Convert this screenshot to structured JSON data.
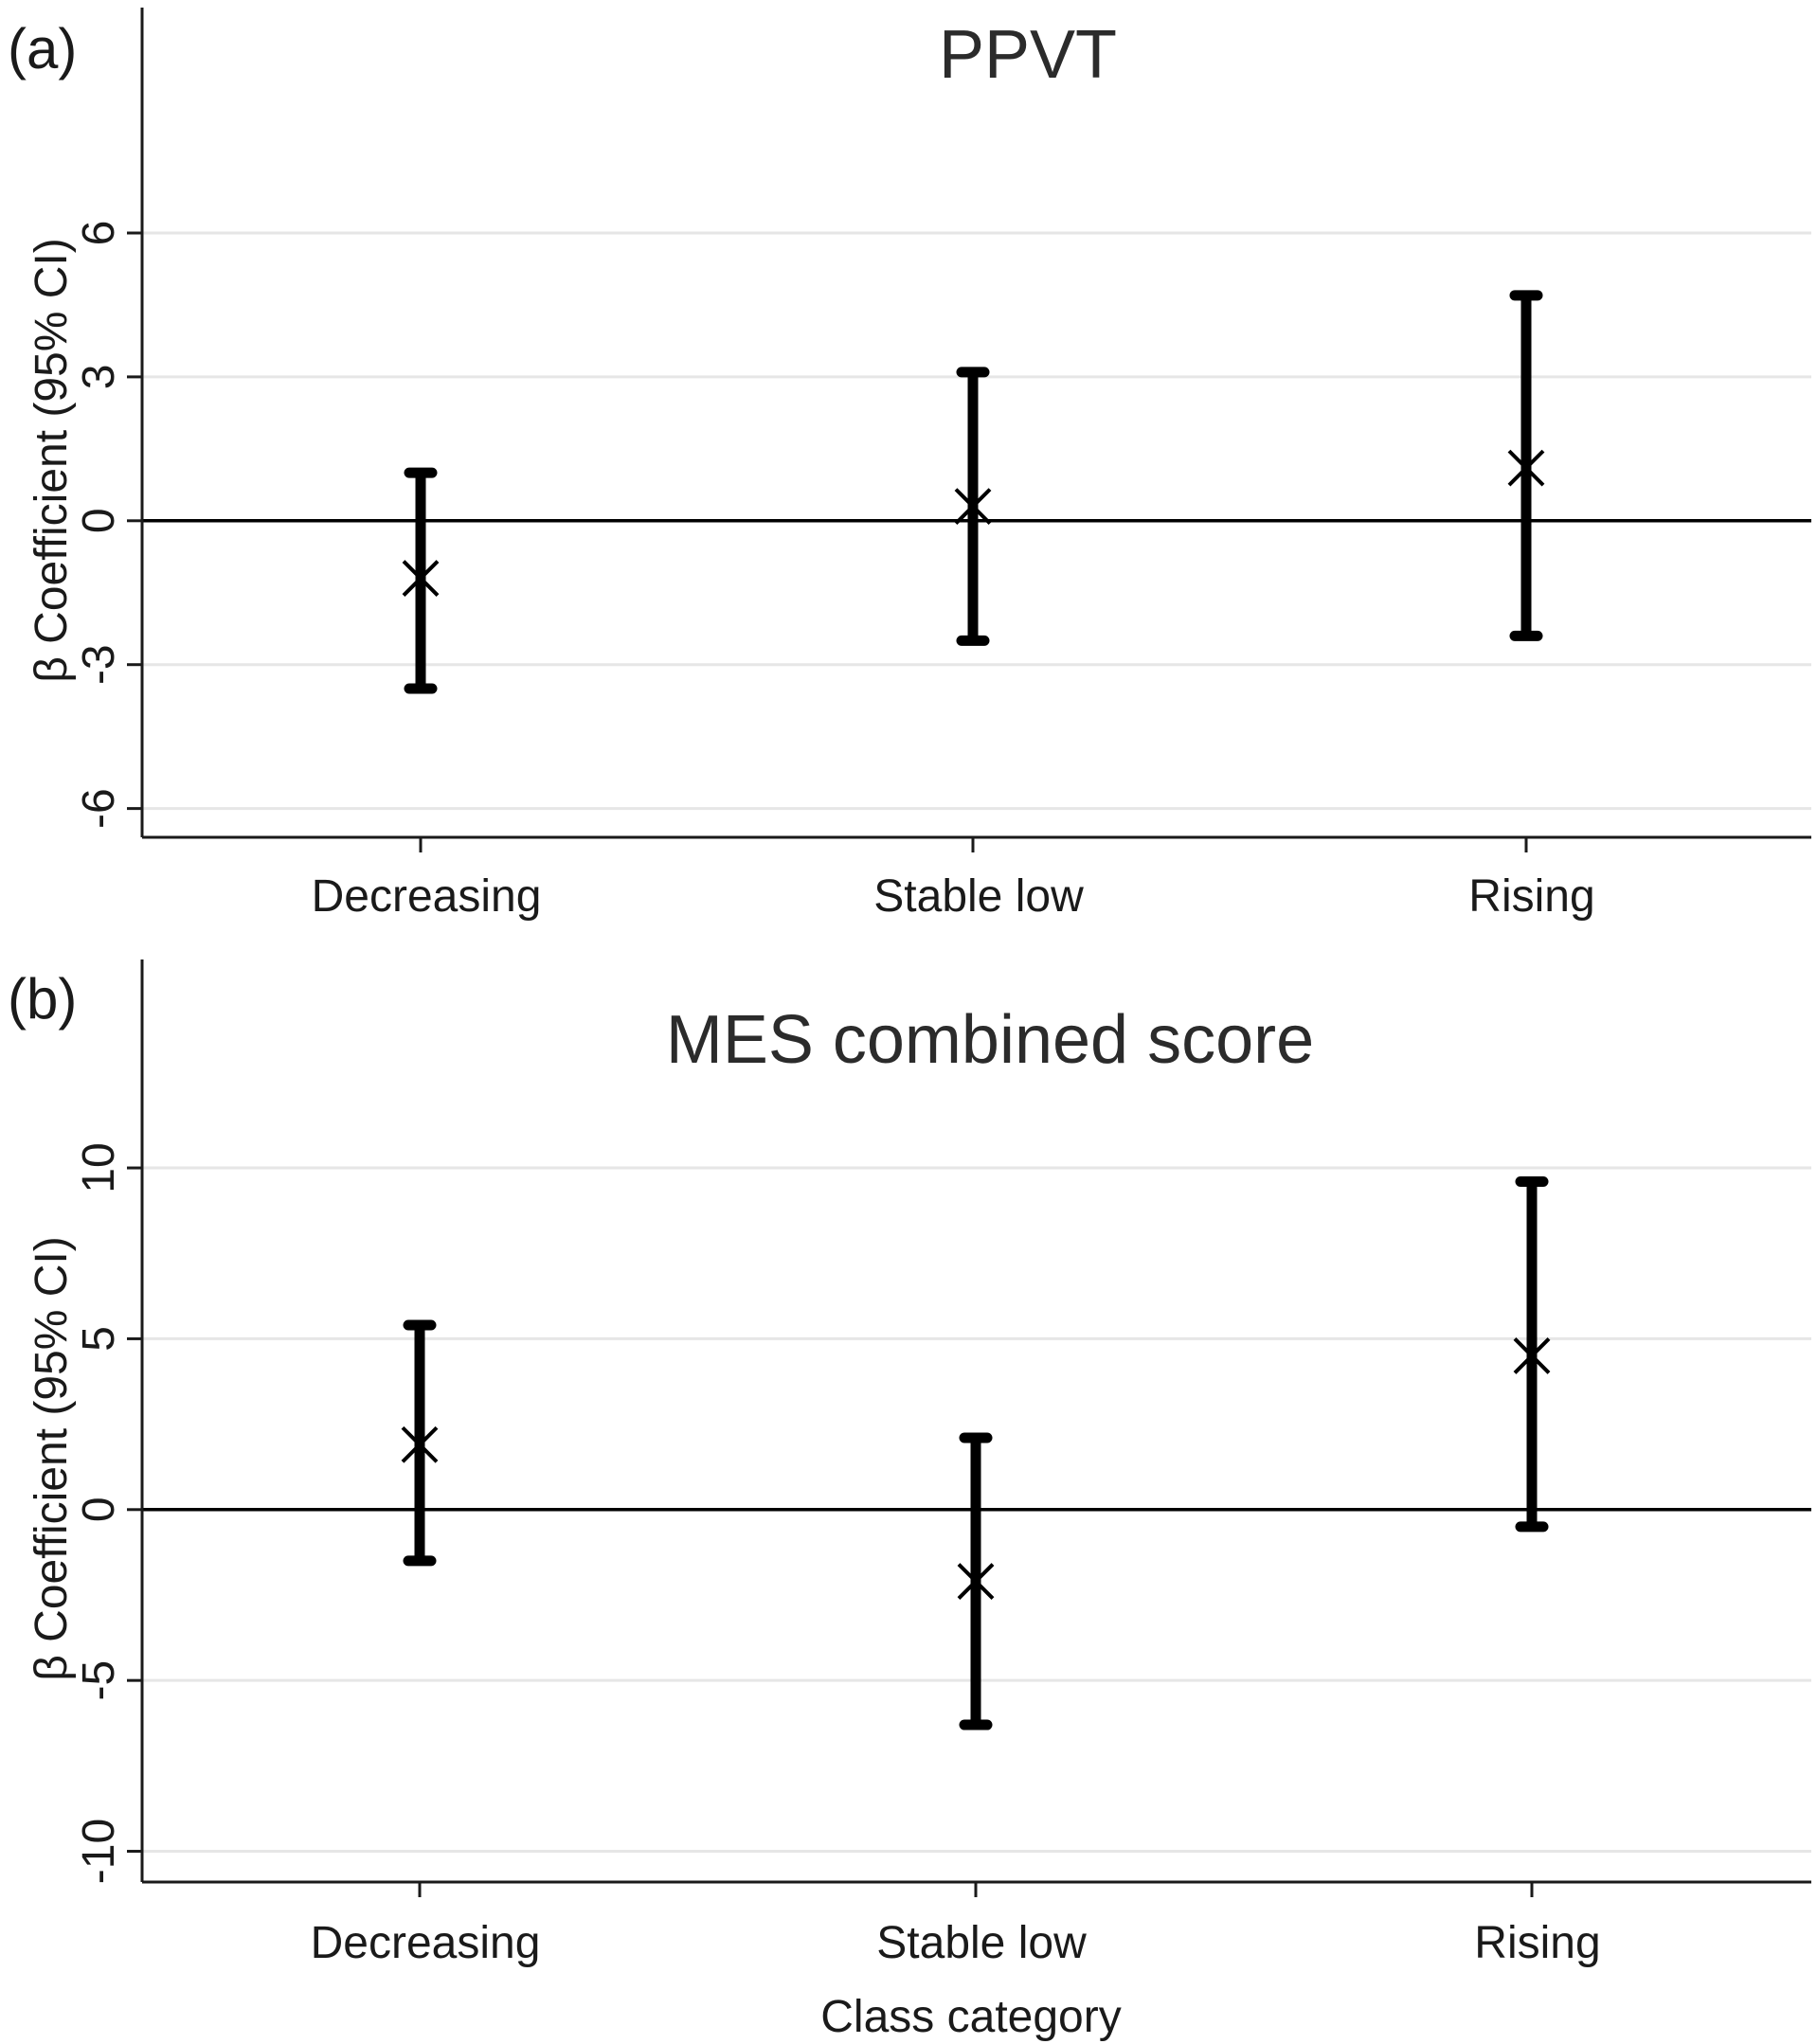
{
  "chart_data": [
    {
      "type": "errorbar",
      "panel_label": "(a)",
      "title": "PPVT",
      "ylabel": "β Coefficient  (95% CI)",
      "xlabel": "",
      "categories": [
        "Decreasing",
        "Stable low",
        "Rising"
      ],
      "estimates": [
        -1.2,
        0.3,
        1.1
      ],
      "ci_lower": [
        -3.5,
        -2.5,
        -2.4
      ],
      "ci_upper": [
        1.0,
        3.1,
        4.7
      ],
      "yticks": [
        -6,
        -3,
        0,
        3,
        6
      ],
      "ytick_labels": [
        "-6",
        "-3",
        "0",
        "3",
        "6"
      ],
      "ylim": [
        -6.6,
        10.7
      ],
      "grid": true,
      "reference_line": 0
    },
    {
      "type": "errorbar",
      "panel_label": "(b)",
      "title": "MES combined score",
      "ylabel": "β Coefficient  (95% CI)",
      "xlabel": "Class category",
      "categories": [
        "Decreasing",
        "Stable low",
        "Rising"
      ],
      "estimates": [
        1.9,
        -2.1,
        4.5
      ],
      "ci_lower": [
        -1.5,
        -6.3,
        -0.5
      ],
      "ci_upper": [
        5.4,
        2.1,
        9.6
      ],
      "yticks": [
        -10,
        -5,
        0,
        5,
        10
      ],
      "ytick_labels": [
        "-10",
        "-5",
        "0",
        "5",
        "10"
      ],
      "ylim": [
        -10.9,
        16.1
      ],
      "grid": true,
      "reference_line": 0
    }
  ]
}
